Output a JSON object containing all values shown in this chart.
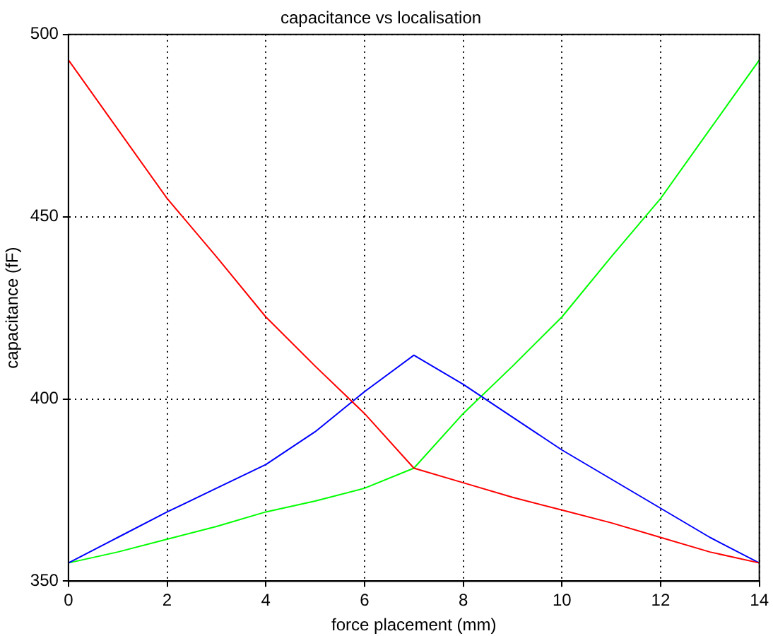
{
  "chart_data": {
    "type": "line",
    "title": "capacitance vs localisation",
    "xlabel": "force placement (mm)",
    "ylabel": "capacitance (fF)",
    "xlim": [
      0,
      14
    ],
    "xticks": [
      0,
      2,
      4,
      6,
      8,
      10,
      12,
      14
    ],
    "ylim": [
      350,
      500
    ],
    "yticks": [
      350,
      400,
      450,
      500
    ],
    "grid": true,
    "legend": false,
    "marker": "none",
    "line_style": "solid",
    "x": [
      0,
      1,
      2,
      3,
      4,
      5,
      6,
      7,
      8,
      9,
      10,
      11,
      12,
      13,
      14
    ],
    "series": [
      {
        "color": "#ff0000",
        "values": [
          493,
          474,
          455,
          439,
          422.5,
          409,
          396,
          381,
          377,
          373,
          369.5,
          366,
          362,
          358,
          355
        ]
      },
      {
        "color": "#0000ff",
        "values": [
          355,
          362,
          369,
          375.5,
          382,
          391,
          402,
          412,
          404,
          395,
          386,
          378,
          370,
          362,
          355
        ]
      },
      {
        "color": "#00ff00",
        "values": [
          355,
          358,
          361.5,
          365,
          369,
          372,
          375.5,
          381,
          396,
          409,
          422.5,
          439,
          455,
          474,
          493
        ]
      }
    ]
  }
}
